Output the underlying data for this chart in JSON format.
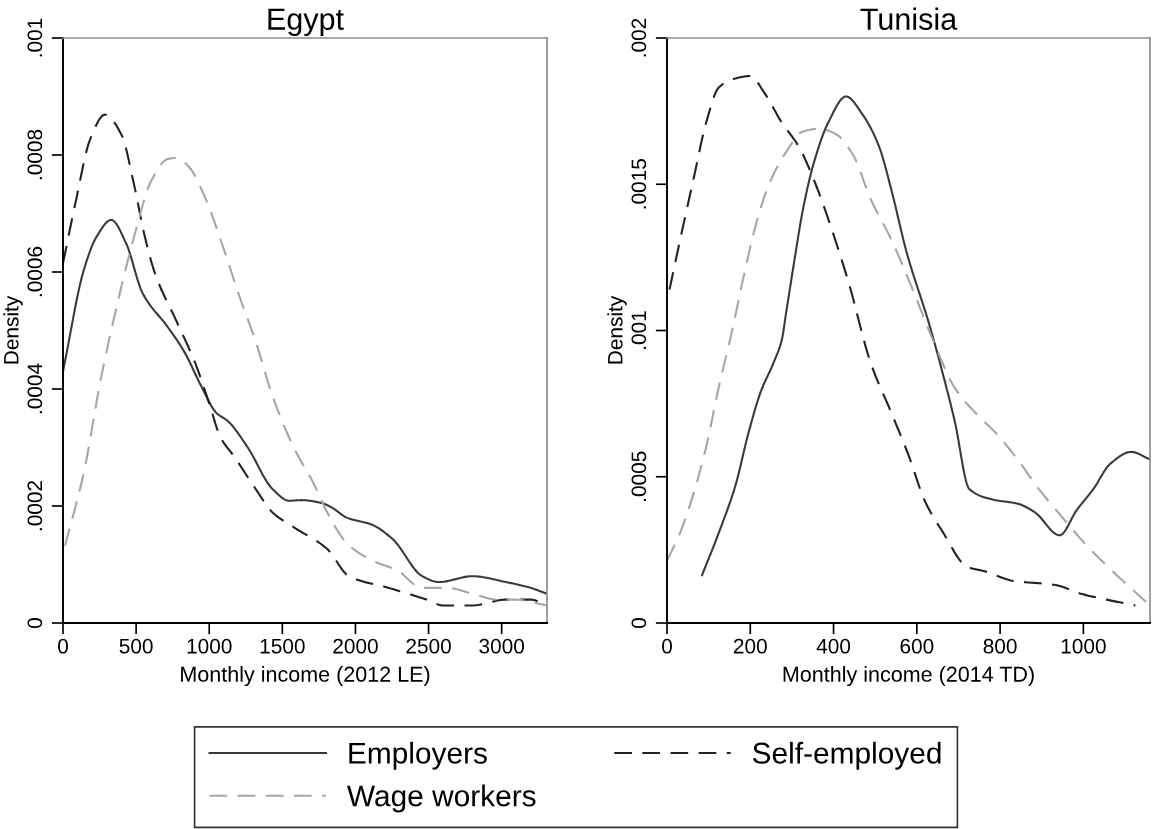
{
  "chart_data": [
    {
      "type": "line",
      "title": "Egypt",
      "xlabel": "Monthly income (2012 LE)",
      "ylabel": "Density",
      "xlim": [
        0,
        3310
      ],
      "ylim": [
        0,
        0.001
      ],
      "xticks": [
        0,
        500,
        1000,
        1500,
        2000,
        2500,
        3000
      ],
      "yticks": [
        {
          "value": 0,
          "label": "0"
        },
        {
          "value": 0.0002,
          "label": ".0002"
        },
        {
          "value": 0.0004,
          "label": ".0004"
        },
        {
          "value": 0.0006,
          "label": ".0006"
        },
        {
          "value": 0.0008,
          "label": ".0008"
        },
        {
          "value": 0.001,
          "label": ".001"
        }
      ],
      "legend": "bottom",
      "series": [
        {
          "name": "Employers",
          "color": "#3a3a3a",
          "line_style": "solid",
          "x": [
            0,
            143,
            229,
            330,
            430,
            544,
            716,
            831,
            945,
            1046,
            1132,
            1261,
            1433,
            1547,
            1633,
            1770,
            1834,
            1942,
            2113,
            2256,
            2457,
            2571,
            2800,
            3029,
            3200,
            3310
          ],
          "values": [
            0.00043,
            0.000604,
            0.00066,
            0.000689,
            0.00065,
            0.000564,
            0.000506,
            0.000463,
            0.000405,
            0.00036,
            0.000344,
            0.000301,
            0.000229,
            0.000209,
            0.00021,
            0.000205,
            0.000198,
            0.00018,
            0.000168,
            0.000143,
            8e-05,
            7e-05,
            8e-05,
            7e-05,
            6e-05,
            5e-05
          ]
        },
        {
          "name": "Self-employed",
          "color": "#222222",
          "line_style": "dashed",
          "x": [
            0,
            86,
            186,
            287,
            401,
            487,
            559,
            630,
            774,
            903,
            1003,
            1074,
            1175,
            1318,
            1433,
            1576,
            1805,
            1956,
            2228,
            2485,
            2600,
            2800,
            3029,
            3200,
            3310
          ],
          "values": [
            0.000615,
            0.000719,
            0.000827,
            0.000869,
            0.000834,
            0.000748,
            0.000661,
            0.000597,
            0.000517,
            0.000445,
            0.000373,
            0.000319,
            0.000283,
            0.000229,
            0.000189,
            0.000164,
            0.000127,
            8e-05,
            6e-05,
            4e-05,
            3e-05,
            3e-05,
            4e-05,
            4e-05,
            3e-05
          ]
        },
        {
          "name": "Wage workers",
          "color": "#a6a6a6",
          "line_style": "dashed",
          "x": [
            14,
            143,
            258,
            372,
            487,
            602,
            716,
            774,
            860,
            974,
            1089,
            1203,
            1318,
            1433,
            1576,
            1719,
            1770,
            1860,
            1942,
            2113,
            2285,
            2457,
            2628,
            2800,
            2971,
            3086,
            3310
          ],
          "values": [
            0.000132,
            0.000258,
            0.000416,
            0.000546,
            0.000661,
            0.000755,
            0.000793,
            0.000795,
            0.00078,
            0.000726,
            0.000647,
            0.000561,
            0.000481,
            0.000388,
            0.000301,
            0.000236,
            0.000208,
            0.000165,
            0.000136,
            0.000107,
            9e-05,
            6e-05,
            6e-05,
            5e-05,
            4e-05,
            4e-05,
            3e-05
          ]
        }
      ]
    },
    {
      "type": "line",
      "title": "Tunisia",
      "xlabel": "Monthly income (2014 TD)",
      "ylabel": "Density",
      "xlim": [
        0,
        1160
      ],
      "ylim": [
        0,
        0.002
      ],
      "xticks": [
        0,
        200,
        400,
        600,
        800,
        1000
      ],
      "yticks": [
        {
          "value": 0,
          "label": "0"
        },
        {
          "value": 0.0005,
          "label": ".0005"
        },
        {
          "value": 0.001,
          "label": ".001"
        },
        {
          "value": 0.0015,
          "label": ".0015"
        },
        {
          "value": 0.002,
          "label": ".002"
        }
      ],
      "legend": "bottom",
      "series": [
        {
          "name": "Employers",
          "color": "#3a3a3a",
          "line_style": "solid",
          "x": [
            84,
            124,
            165,
            195,
            225,
            256,
            276,
            286,
            306,
            326,
            352,
            387,
            430,
            469,
            509,
            539,
            575,
            630,
            661,
            691,
            726,
            782,
            842,
            883,
            943,
            984,
            1024,
            1065,
            1115,
            1160
          ],
          "values": [
            0.000163,
            0.000307,
            0.000473,
            0.000646,
            0.00079,
            0.00089,
            0.00097,
            0.00106,
            0.00124,
            0.00141,
            0.00157,
            0.00171,
            0.0018,
            0.00174,
            0.00163,
            0.00148,
            0.00127,
            0.00102,
            0.00086,
            0.00069,
            0.000458,
            0.000422,
            0.000408,
            0.000379,
            0.0003,
            0.000386,
            0.000458,
            0.000545,
            0.000585,
            0.000559
          ]
        },
        {
          "name": "Self-employed",
          "color": "#222222",
          "line_style": "dashed",
          "x": [
            6,
            33,
            64,
            94,
            124,
            160,
            200,
            235,
            276,
            316,
            357,
            397,
            437,
            489,
            539,
            580,
            620,
            661,
            721,
            762,
            832,
            933,
            994,
            1055,
            1125
          ],
          "values": [
            0.00114,
            0.00132,
            0.00152,
            0.00171,
            0.00183,
            0.00186,
            0.00187,
            0.00181,
            0.00171,
            0.00163,
            0.0015,
            0.00134,
            0.00116,
            0.00089,
            0.000718,
            0.000574,
            0.000415,
            0.000314,
            0.000192,
            0.000177,
            0.000144,
            0.00013,
            0.0001,
            8e-05,
            6e-05
          ]
        },
        {
          "name": "Wage workers",
          "color": "#a6a6a6",
          "line_style": "dashed",
          "x": [
            0,
            33,
            64,
            94,
            124,
            155,
            185,
            215,
            245,
            286,
            326,
            367,
            407,
            447,
            489,
            539,
            590,
            640,
            691,
            741,
            792,
            842,
            893,
            943,
            1004,
            1065,
            1160
          ],
          "values": [
            0.000213,
            0.000314,
            0.000444,
            0.000602,
            0.000804,
            0.000991,
            0.00119,
            0.00137,
            0.0015,
            0.00161,
            0.00168,
            0.00169,
            0.00167,
            0.0016,
            0.00145,
            0.00131,
            0.00114,
            0.000963,
            0.000804,
            0.000718,
            0.000646,
            0.000559,
            0.000458,
            0.000372,
            0.000271,
            0.000184,
            6e-05
          ]
        }
      ]
    }
  ]
}
